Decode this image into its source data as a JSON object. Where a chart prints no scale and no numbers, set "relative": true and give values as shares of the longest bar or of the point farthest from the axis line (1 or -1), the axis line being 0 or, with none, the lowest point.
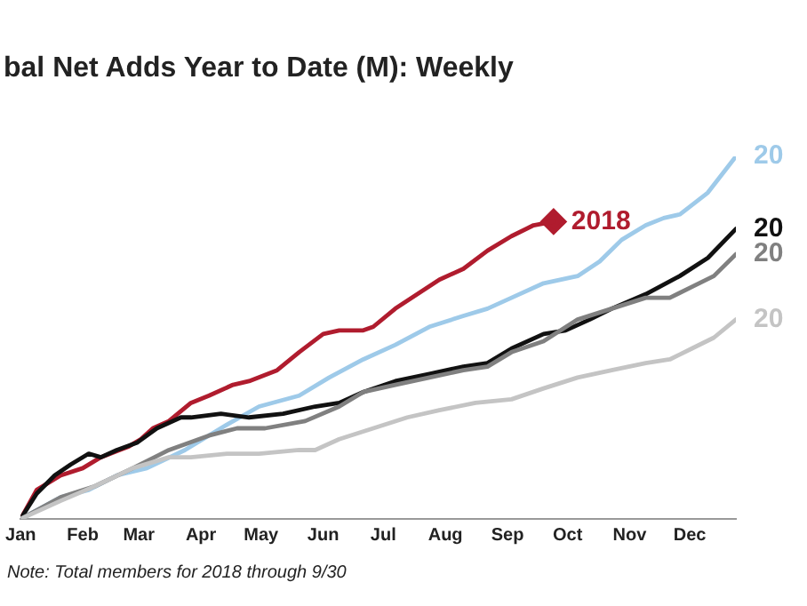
{
  "chart_data": {
    "type": "line",
    "title": "bal Net Adds Year to Date (M): Weekly",
    "relative": true,
    "marker": "none",
    "legend": false,
    "xlim": [
      "--01-01",
      "--12-24"
    ],
    "xticks": [
      {
        "value": "--01-01",
        "label": "Jan"
      },
      {
        "value": "--02-01",
        "label": "Feb"
      },
      {
        "value": "--03-01",
        "label": "Mar"
      },
      {
        "value": "--04-01",
        "label": "Apr"
      },
      {
        "value": "--05-01",
        "label": "May"
      },
      {
        "value": "--06-01",
        "label": "Jun"
      },
      {
        "value": "--07-01",
        "label": "Jul"
      },
      {
        "value": "--08-01",
        "label": "Aug"
      },
      {
        "value": "--09-01",
        "label": "Sep"
      },
      {
        "value": "--10-01",
        "label": "Oct"
      },
      {
        "value": "--11-01",
        "label": "Nov"
      },
      {
        "value": "--12-01",
        "label": "Dec"
      }
    ],
    "series": [
      {
        "name": "20",
        "color": "#c4c4c4",
        "x": [
          "--01-01",
          "--01-21",
          "--02-07",
          "--02-26",
          "--03-16",
          "--03-27",
          "--04-14",
          "--04-30",
          "--05-20",
          "--05-28",
          "--06-09",
          "--06-26",
          "--07-13",
          "--07-29",
          "--08-16",
          "--09-03",
          "--09-19",
          "--10-06",
          "--10-23",
          "--11-09",
          "--11-21",
          "--12-02",
          "--12-13",
          "--12-24"
        ],
        "values": [
          0,
          0.05,
          0.09,
          0.14,
          0.17,
          0.17,
          0.18,
          0.18,
          0.19,
          0.19,
          0.22,
          0.25,
          0.28,
          0.3,
          0.32,
          0.33,
          0.36,
          0.39,
          0.41,
          0.43,
          0.44,
          0.47,
          0.5,
          0.55
        ]
      },
      {
        "name": "20",
        "color": "#808080",
        "x": [
          "--01-01",
          "--01-21",
          "--02-07",
          "--02-26",
          "--03-16",
          "--04-05",
          "--04-19",
          "--05-03",
          "--05-23",
          "--06-09",
          "--06-21",
          "--07-07",
          "--07-24",
          "--08-10",
          "--08-22",
          "--09-03",
          "--09-19",
          "--10-06",
          "--10-23",
          "--11-09",
          "--11-21",
          "--12-02",
          "--12-13",
          "--12-24"
        ],
        "values": [
          0,
          0.06,
          0.09,
          0.14,
          0.19,
          0.23,
          0.25,
          0.25,
          0.27,
          0.31,
          0.35,
          0.37,
          0.39,
          0.41,
          0.42,
          0.46,
          0.49,
          0.55,
          0.58,
          0.61,
          0.61,
          0.64,
          0.67,
          0.73
        ]
      },
      {
        "name": "20",
        "color": "#111111",
        "x": [
          "--01-01",
          "--01-09",
          "--01-18",
          "--01-26",
          "--02-04",
          "--02-10",
          "--02-18",
          "--02-28",
          "--03-10",
          "--03-22",
          "--03-27",
          "--04-11",
          "--04-25",
          "--05-12",
          "--05-28",
          "--06-09",
          "--06-21",
          "--07-07",
          "--07-24",
          "--08-10",
          "--08-22",
          "--09-03",
          "--09-19",
          "--09-30",
          "--10-12",
          "--10-23",
          "--11-09",
          "--11-26",
          "--12-10",
          "--12-24"
        ],
        "values": [
          0,
          0.07,
          0.12,
          0.15,
          0.18,
          0.17,
          0.19,
          0.21,
          0.25,
          0.28,
          0.28,
          0.29,
          0.28,
          0.29,
          0.31,
          0.32,
          0.35,
          0.38,
          0.4,
          0.42,
          0.43,
          0.47,
          0.51,
          0.52,
          0.55,
          0.58,
          0.62,
          0.67,
          0.72,
          0.8
        ]
      },
      {
        "name": "20",
        "color": "#9ecae9",
        "x": [
          "--01-01",
          "--01-21",
          "--02-04",
          "--02-18",
          "--03-05",
          "--03-24",
          "--04-14",
          "--04-30",
          "--05-20",
          "--06-04",
          "--06-21",
          "--07-07",
          "--07-24",
          "--08-10",
          "--08-22",
          "--09-03",
          "--09-19",
          "--10-06",
          "--10-17",
          "--10-28",
          "--11-09",
          "--11-18",
          "--11-26",
          "--12-10",
          "--12-24"
        ],
        "values": [
          0,
          0.06,
          0.08,
          0.12,
          0.14,
          0.19,
          0.26,
          0.31,
          0.34,
          0.39,
          0.44,
          0.48,
          0.53,
          0.56,
          0.58,
          0.61,
          0.65,
          0.67,
          0.71,
          0.77,
          0.81,
          0.83,
          0.84,
          0.9,
          1
        ]
      },
      {
        "name": "2018",
        "color": "#b01c2e",
        "x": [
          "--01-01",
          "--01-09",
          "--01-21",
          "--02-01",
          "--02-10",
          "--02-24",
          "--03-02",
          "--03-08",
          "--03-16",
          "--03-27",
          "--04-05",
          "--04-17",
          "--04-25",
          "--05-09",
          "--05-20",
          "--06-01",
          "--06-09",
          "--06-21",
          "--06-26",
          "--07-07",
          "--07-18",
          "--07-29",
          "--08-10",
          "--08-22",
          "--09-03",
          "--09-14",
          "--09-24"
        ],
        "values": [
          0,
          0.08,
          0.12,
          0.14,
          0.17,
          0.2,
          0.22,
          0.25,
          0.27,
          0.32,
          0.34,
          0.37,
          0.38,
          0.41,
          0.46,
          0.51,
          0.52,
          0.52,
          0.53,
          0.58,
          0.62,
          0.66,
          0.69,
          0.74,
          0.78,
          0.81,
          0.82
        ]
      },
      {
        "type": "scatter",
        "marker": "diamond",
        "color": "#b01c2e",
        "x": [
          "--09-24"
        ],
        "values": [
          0.82
        ]
      }
    ],
    "annotations": [
      "Note: Total members for 2018 through 9/30"
    ]
  }
}
